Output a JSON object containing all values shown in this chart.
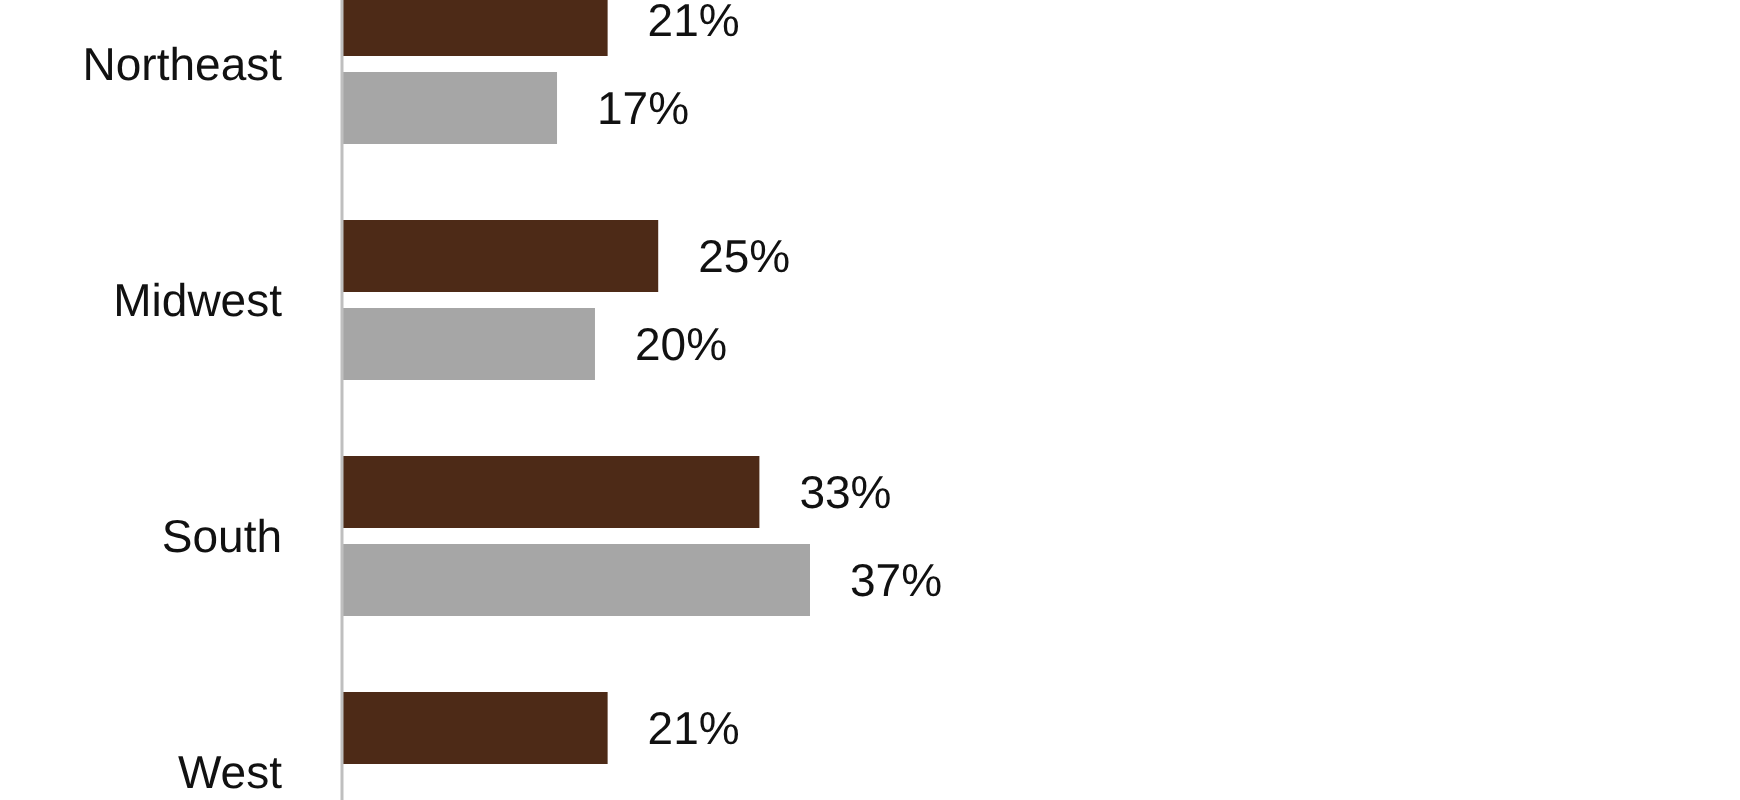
{
  "chart_data": {
    "type": "bar",
    "orientation": "horizontal",
    "categories": [
      "Northeast",
      "Midwest",
      "South",
      "West"
    ],
    "series": [
      {
        "color": "#4d2a17",
        "values": [
          21,
          25,
          33,
          21
        ],
        "value_labels": [
          "21%",
          "25%",
          "33%",
          "21%"
        ]
      },
      {
        "color": "#a6a6a6",
        "values": [
          17,
          20,
          37,
          null
        ],
        "value_labels": [
          "17%",
          "20%",
          "37%",
          null
        ]
      }
    ]
  }
}
